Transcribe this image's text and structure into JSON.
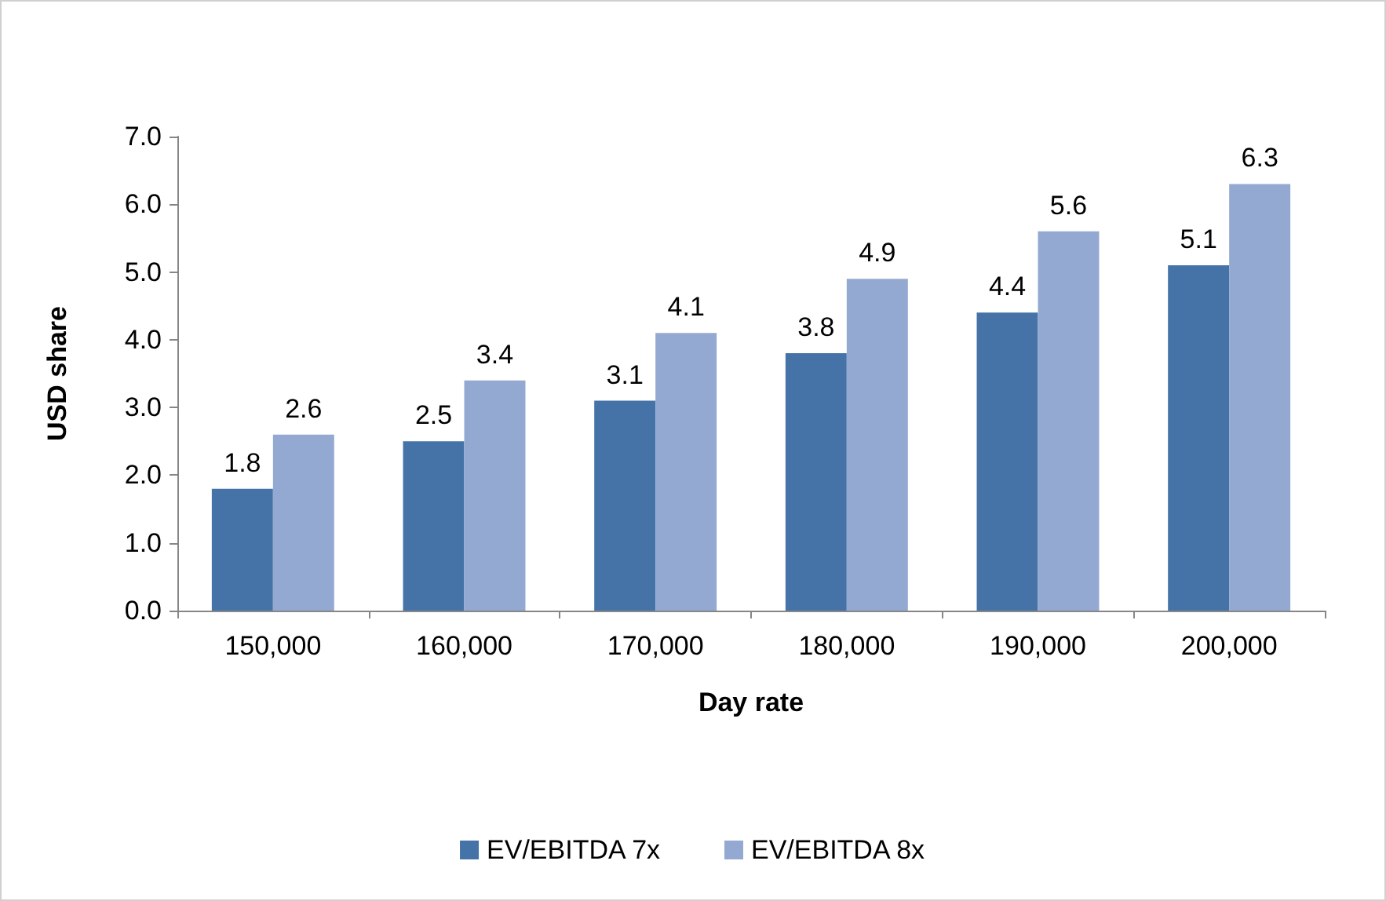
{
  "chart_data": {
    "type": "bar",
    "xlabel": "Day rate",
    "ylabel": "USD share",
    "categories": [
      "150,000",
      "160,000",
      "170,000",
      "180,000",
      "190,000",
      "200,000"
    ],
    "series": [
      {
        "name": "EV/EBITDA 7x",
        "color": "#4573a7",
        "values": [
          1.8,
          2.5,
          3.1,
          3.8,
          4.4,
          5.1
        ]
      },
      {
        "name": "EV/EBITDA 8x",
        "color": "#94a9d1",
        "values": [
          2.6,
          3.4,
          4.1,
          4.9,
          5.6,
          6.3
        ]
      }
    ],
    "ylim": [
      0,
      7
    ],
    "yticks": [
      {
        "value": 0,
        "label": "0.0"
      },
      {
        "value": 1,
        "label": "1.0"
      },
      {
        "value": 2,
        "label": "2.0"
      },
      {
        "value": 3,
        "label": "3.0"
      },
      {
        "value": 4,
        "label": "4.0"
      },
      {
        "value": 5,
        "label": "5.0"
      },
      {
        "value": 6,
        "label": "6.0"
      },
      {
        "value": 7,
        "label": "7.0"
      }
    ],
    "data_labels": true,
    "grid": false,
    "legend": "bottom"
  }
}
